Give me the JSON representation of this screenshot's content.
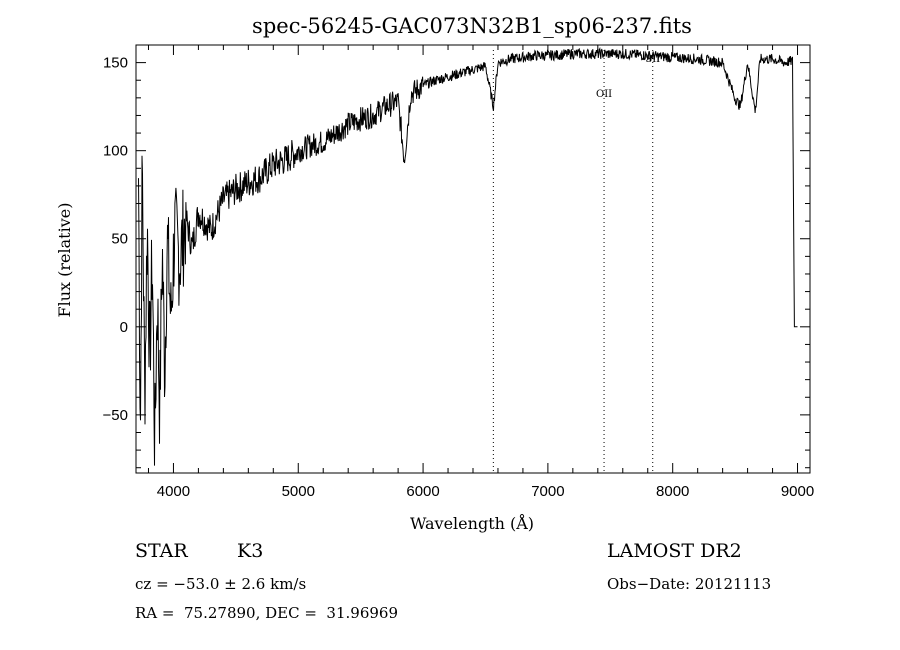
{
  "chart_data": {
    "type": "line",
    "title": "spec-56245-GAC073N32B1_sp06-237.fits",
    "xlabel": "Wavelength (Å)",
    "ylabel": "Flux (relative)",
    "xlim": [
      3700,
      9100
    ],
    "ylim": [
      -83,
      160
    ],
    "x_ticks": [
      4000,
      5000,
      6000,
      7000,
      8000,
      9000
    ],
    "y_ticks": [
      -50,
      0,
      50,
      100,
      150
    ],
    "x_tick_labels": [
      "4000",
      "5000",
      "6000",
      "7000",
      "8000",
      "9000"
    ],
    "y_tick_labels": [
      "−50",
      "0",
      "50",
      "100",
      "150"
    ],
    "grid": false,
    "line_markers": [
      {
        "label": "",
        "x": 6563
      },
      {
        "label": "OII",
        "x": 7450
      },
      {
        "label": "SII",
        "x": 7840
      }
    ],
    "series": [
      {
        "points": [
          [
            3720,
            85
          ],
          [
            3735,
            -60
          ],
          [
            3750,
            95
          ],
          [
            3770,
            -40
          ],
          [
            3790,
            60
          ],
          [
            3810,
            -20
          ],
          [
            3830,
            40
          ],
          [
            3850,
            -70
          ],
          [
            3870,
            20
          ],
          [
            3890,
            -48
          ],
          [
            3910,
            45
          ],
          [
            3930,
            -25
          ],
          [
            3950,
            50
          ],
          [
            3980,
            5
          ],
          [
            4010,
            55
          ],
          [
            4050,
            38
          ],
          [
            4100,
            62
          ],
          [
            4150,
            45
          ],
          [
            4200,
            65
          ],
          [
            4300,
            55
          ],
          [
            4400,
            72
          ],
          [
            4500,
            78
          ],
          [
            4600,
            82
          ],
          [
            4700,
            85
          ],
          [
            4800,
            92
          ],
          [
            4900,
            95
          ],
          [
            5000,
            100
          ],
          [
            5100,
            103
          ],
          [
            5200,
            105
          ],
          [
            5300,
            110
          ],
          [
            5400,
            115
          ],
          [
            5500,
            118
          ],
          [
            5600,
            120
          ],
          [
            5700,
            125
          ],
          [
            5800,
            128
          ],
          [
            5850,
            95
          ],
          [
            5900,
            132
          ],
          [
            6000,
            137
          ],
          [
            6100,
            140
          ],
          [
            6200,
            142
          ],
          [
            6300,
            144
          ],
          [
            6400,
            146
          ],
          [
            6500,
            148
          ],
          [
            6563,
            125
          ],
          [
            6600,
            150
          ],
          [
            6700,
            152
          ],
          [
            6800,
            153
          ],
          [
            6900,
            154
          ],
          [
            7000,
            154
          ],
          [
            7200,
            155
          ],
          [
            7400,
            155
          ],
          [
            7600,
            155
          ],
          [
            7800,
            154
          ],
          [
            8000,
            153
          ],
          [
            8200,
            152
          ],
          [
            8400,
            150
          ],
          [
            8498,
            130
          ],
          [
            8542,
            125
          ],
          [
            8600,
            150
          ],
          [
            8662,
            122
          ],
          [
            8700,
            152
          ],
          [
            8800,
            152
          ],
          [
            8900,
            150
          ],
          [
            8960,
            151
          ],
          [
            8975,
            0
          ]
        ]
      }
    ]
  },
  "info": {
    "object_class": "STAR",
    "subclass": "K3",
    "survey": "LAMOST DR2",
    "cz": "cz = −53.0 ± 2.6 km/s",
    "obs_date": "Obs−Date: 20121113",
    "radec": "RA =  75.27890, DEC =  31.96969"
  }
}
